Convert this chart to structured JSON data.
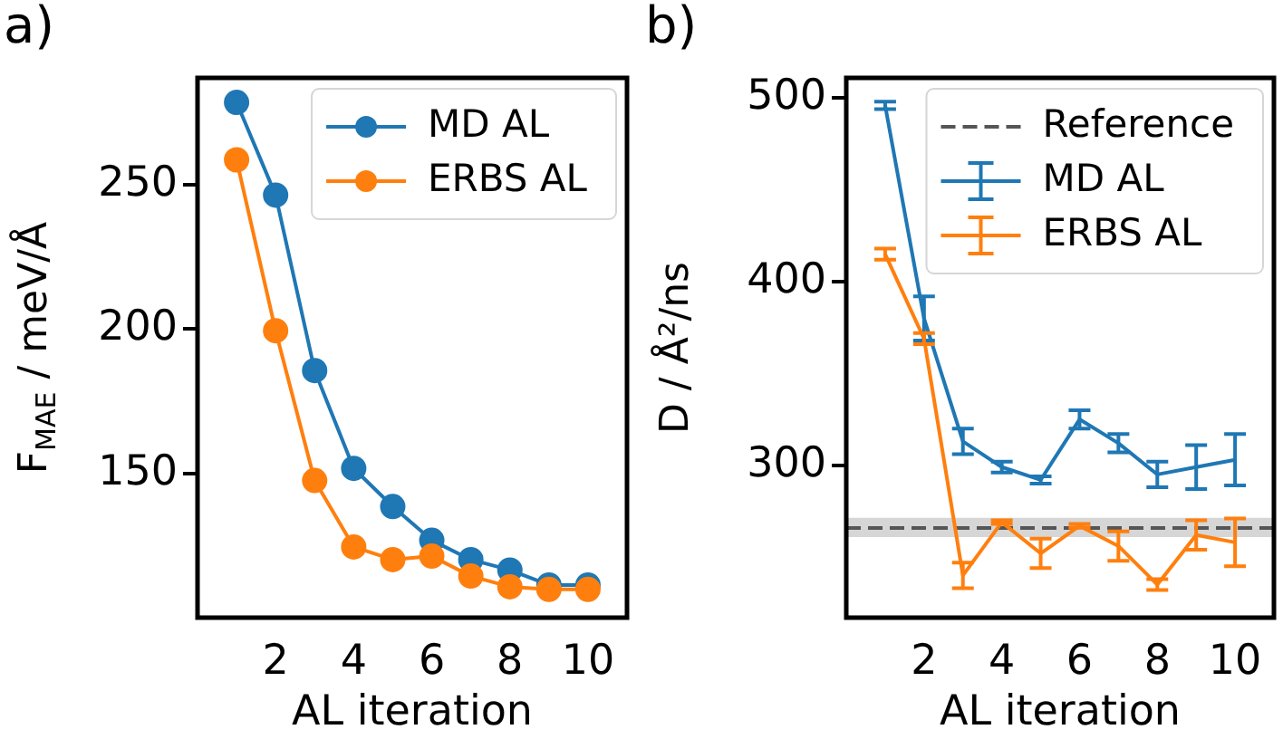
{
  "chart_data": [
    {
      "type": "line",
      "title": "a)",
      "xlabel": "AL iteration",
      "ylabel": "F$_{MAE}$ / meV/Å",
      "x": [
        1,
        2,
        3,
        4,
        5,
        6,
        7,
        8,
        9,
        10
      ],
      "xlim": [
        0,
        11
      ],
      "xticks": [
        2,
        4,
        6,
        8,
        10
      ],
      "ylim": [
        100,
        287
      ],
      "yticks": [
        150,
        200,
        250
      ],
      "grid": false,
      "legend": "top right",
      "marker": "circle",
      "line_style": "solid",
      "series": [
        {
          "name": "MD AL",
          "color": "#1f77b4",
          "values": [
            278.5,
            246.4,
            185.6,
            151.7,
            138.5,
            126.8,
            120.1,
            116.5,
            111.3,
            111.3
          ]
        },
        {
          "name": "ERBS AL",
          "color": "#ff7f0e",
          "values": [
            258.6,
            199.4,
            147.5,
            124.5,
            120.1,
            121.3,
            114.4,
            110.7,
            109.8,
            109.8
          ]
        }
      ]
    },
    {
      "type": "line",
      "title": "b)",
      "xlabel": "AL iteration",
      "ylabel": "D / Å²/ns",
      "x": [
        1,
        2,
        3,
        4,
        5,
        6,
        7,
        8,
        9,
        10
      ],
      "xlim": [
        0,
        11
      ],
      "xticks": [
        2,
        4,
        6,
        8,
        10
      ],
      "ylim": [
        217,
        511
      ],
      "yticks": [
        300,
        400,
        500
      ],
      "grid": false,
      "legend": "top right",
      "marker": "none",
      "line_style": "solid",
      "ref_lines": [
        {
          "axis": "y",
          "value": 265.8,
          "label": "Reference",
          "color": "#555555",
          "line_style": "dashed"
        }
      ],
      "bands": [
        {
          "axis": "y",
          "from": 260.9,
          "to": 271.4,
          "color": "#cccccc"
        }
      ],
      "series": [
        {
          "name": "MD AL",
          "color": "#1f77b4",
          "values": [
            496,
            380,
            313,
            299,
            292,
            325,
            312,
            295,
            299,
            303
          ],
          "errors": [
            2,
            12,
            7,
            3,
            2,
            5,
            5,
            7,
            12,
            14
          ]
        },
        {
          "name": "ERBS AL",
          "color": "#ff7f0e",
          "values": [
            415,
            369,
            240,
            269,
            252,
            267,
            256,
            235,
            262,
            258
          ],
          "errors": [
            3,
            3,
            7,
            1,
            8,
            1,
            8,
            3,
            8,
            13
          ]
        }
      ]
    }
  ]
}
